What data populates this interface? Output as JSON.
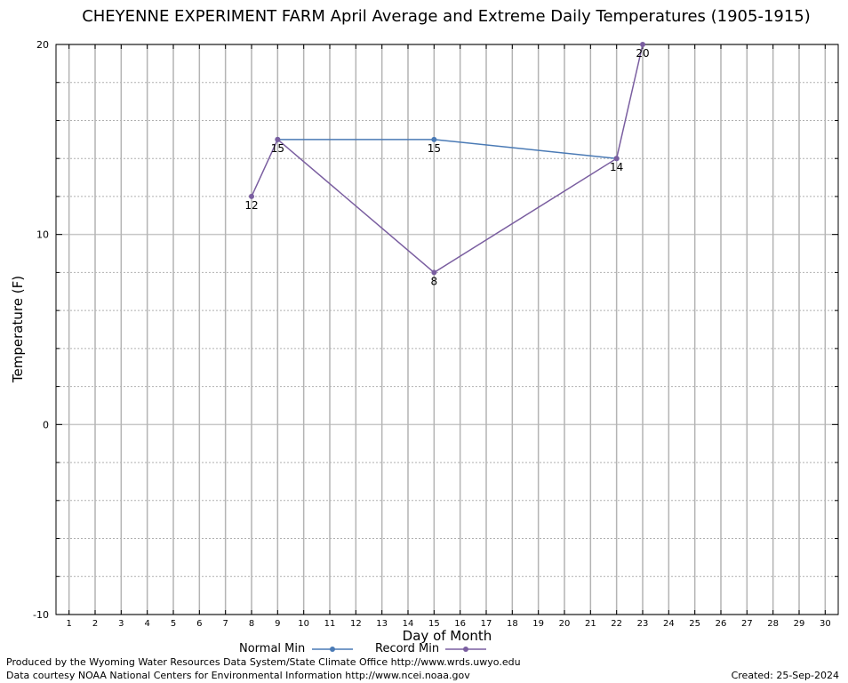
{
  "chart_data": {
    "type": "line",
    "title": "CHEYENNE EXPERIMENT FARM April Average and Extreme Daily Temperatures (1905-1915)",
    "xlabel": "Day of Month",
    "ylabel": "Temperature (F)",
    "xlim": [
      0.5,
      30.5
    ],
    "ylim": [
      -10,
      20
    ],
    "x_ticks": [
      1,
      2,
      3,
      4,
      5,
      6,
      7,
      8,
      9,
      10,
      11,
      12,
      13,
      14,
      15,
      16,
      17,
      18,
      19,
      20,
      21,
      22,
      23,
      24,
      25,
      26,
      27,
      28,
      29,
      30
    ],
    "y_ticks": [
      -10,
      0,
      10,
      20
    ],
    "grid": true,
    "legend_position": "bottom",
    "series": [
      {
        "name": "Normal Min",
        "color": "#4a7ab5",
        "x": [
          9,
          15,
          22
        ],
        "y": [
          15,
          15,
          14
        ],
        "labels": [
          null,
          "15",
          null
        ]
      },
      {
        "name": "Record Min",
        "color": "#7a5ea0",
        "x": [
          8,
          9,
          15,
          22,
          23
        ],
        "y": [
          12,
          15,
          8,
          14,
          20
        ],
        "labels": [
          "12",
          "15",
          "8",
          "14",
          "20"
        ]
      }
    ]
  },
  "footer": {
    "produced_by": "Produced by the Wyoming Water Resources Data System/State Climate Office http://www.wrds.uwyo.edu",
    "courtesy": "Data courtesy NOAA National Centers for Environmental Information http://www.ncei.noaa.gov",
    "created": "Created:  25-Sep-2024"
  }
}
